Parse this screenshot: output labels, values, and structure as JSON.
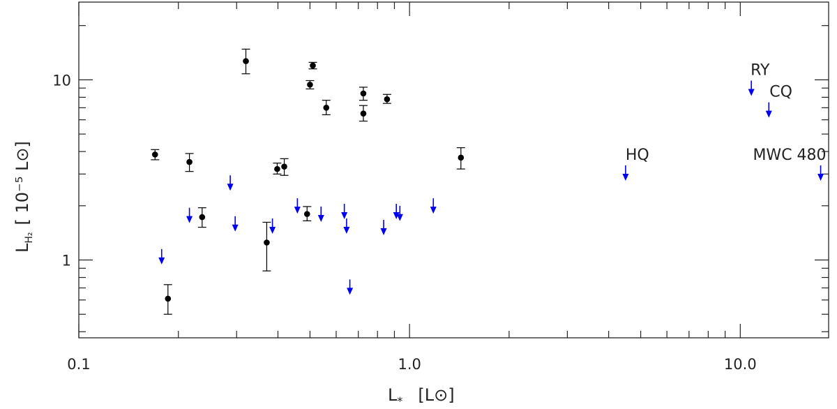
{
  "chart_data": {
    "type": "scatter",
    "title": "",
    "xlabel": {
      "main": "L",
      "sub": "*",
      "unit": "[L⊙]"
    },
    "ylabel": {
      "main": "L",
      "sub": "H₂",
      "unit": "[ 10⁻⁵ L⊙]"
    },
    "x_scale": "log",
    "y_scale": "log",
    "xlim": [
      0.1,
      18.5
    ],
    "ylim": [
      0.37,
      27
    ],
    "x_ticks": [
      {
        "value": 0.1,
        "label": "0.1"
      },
      {
        "value": 1.0,
        "label": "1.0"
      },
      {
        "value": 10.0,
        "label": "10.0"
      }
    ],
    "y_ticks": [
      {
        "value": 1,
        "label": "1"
      },
      {
        "value": 10,
        "label": "10"
      }
    ],
    "grid": false,
    "detections": [
      {
        "x": 0.17,
        "y": 3.85,
        "err": [
          3.6,
          4.1
        ]
      },
      {
        "x": 0.186,
        "y": 0.61,
        "err": [
          0.5,
          0.73
        ]
      },
      {
        "x": 0.216,
        "y": 3.5,
        "err": [
          3.1,
          3.9
        ]
      },
      {
        "x": 0.236,
        "y": 1.73,
        "err": [
          1.52,
          1.95
        ]
      },
      {
        "x": 0.32,
        "y": 12.7,
        "err": [
          10.8,
          14.8
        ]
      },
      {
        "x": 0.37,
        "y": 1.25,
        "err": [
          0.87,
          1.62
        ]
      },
      {
        "x": 0.398,
        "y": 3.2,
        "err": [
          3.0,
          3.45
        ]
      },
      {
        "x": 0.418,
        "y": 3.3,
        "err": [
          2.95,
          3.65
        ]
      },
      {
        "x": 0.49,
        "y": 1.8,
        "err": [
          1.65,
          1.98
        ]
      },
      {
        "x": 0.5,
        "y": 9.4,
        "err": [
          8.9,
          9.9
        ]
      },
      {
        "x": 0.51,
        "y": 12.0,
        "err": [
          11.5,
          12.5
        ]
      },
      {
        "x": 0.56,
        "y": 7.0,
        "err": [
          6.4,
          7.7
        ]
      },
      {
        "x": 0.725,
        "y": 8.4,
        "err": [
          7.7,
          9.1
        ]
      },
      {
        "x": 0.725,
        "y": 6.5,
        "err": [
          5.9,
          7.2
        ]
      },
      {
        "x": 0.855,
        "y": 7.8,
        "err": [
          7.4,
          8.3
        ]
      },
      {
        "x": 1.43,
        "y": 3.7,
        "err": [
          3.2,
          4.2
        ]
      }
    ],
    "upper_limits": [
      {
        "x": 0.178,
        "y": 1.15
      },
      {
        "x": 0.216,
        "y": 1.95
      },
      {
        "x": 0.287,
        "y": 2.95
      },
      {
        "x": 0.297,
        "y": 1.75
      },
      {
        "x": 0.385,
        "y": 1.7
      },
      {
        "x": 0.458,
        "y": 2.2
      },
      {
        "x": 0.54,
        "y": 1.98
      },
      {
        "x": 0.635,
        "y": 2.05
      },
      {
        "x": 0.645,
        "y": 1.7
      },
      {
        "x": 0.66,
        "y": 0.78
      },
      {
        "x": 0.835,
        "y": 1.67
      },
      {
        "x": 0.912,
        "y": 2.05
      },
      {
        "x": 0.935,
        "y": 2.0
      },
      {
        "x": 1.18,
        "y": 2.2
      },
      {
        "x": 4.5,
        "y": 3.35,
        "label": "HQ"
      },
      {
        "x": 10.8,
        "y": 9.9,
        "label": "RY"
      },
      {
        "x": 12.2,
        "y": 7.5,
        "label": "CQ"
      },
      {
        "x": 17.5,
        "y": 3.35,
        "label": "MWC 480"
      }
    ],
    "colors": {
      "detections": "#000000",
      "upper_limits": "#0000ee",
      "axes": "#222222"
    }
  }
}
